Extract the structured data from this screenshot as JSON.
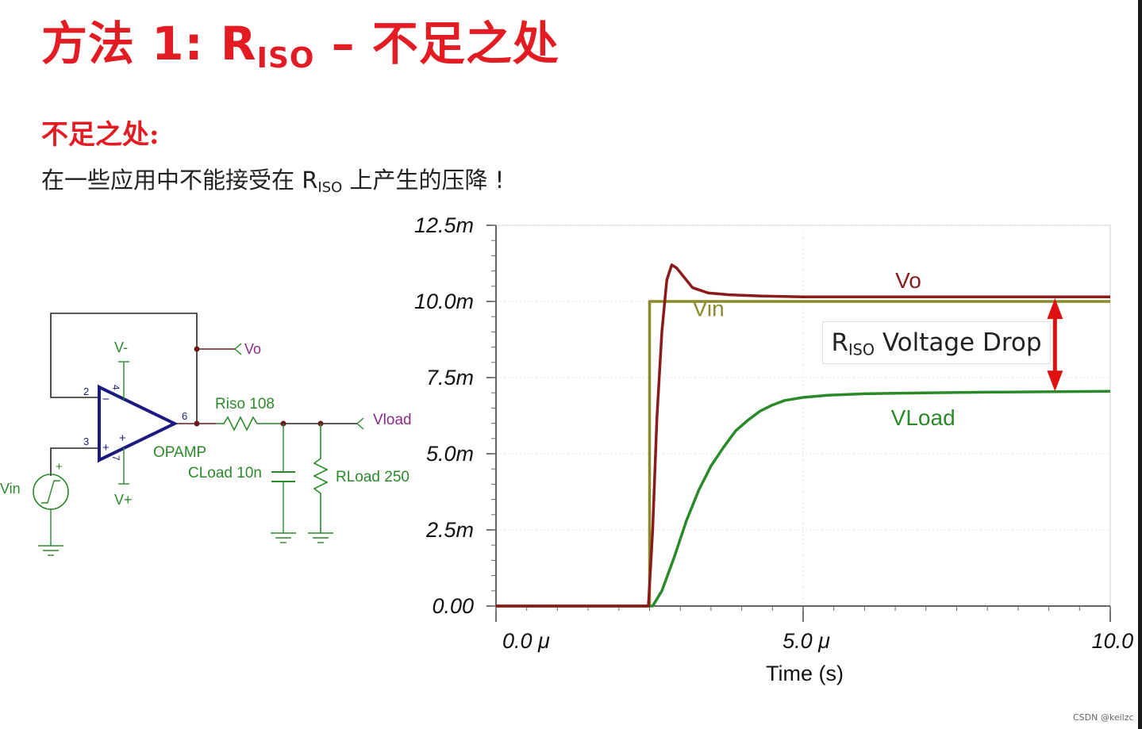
{
  "title": {
    "prefix": "方法 1: R",
    "sub": "ISO",
    "suffix": " – 不足之处"
  },
  "subheading": "不足之处:",
  "body": {
    "prefix": "在一些应用中不能接受在 R",
    "sub": "ISO",
    "suffix": " 上产生的压降 !"
  },
  "schematic": {
    "v_minus": "V-",
    "v_plus": "V+",
    "vo_label": "Vo",
    "vload_label": "Vload",
    "riso_label": "Riso 108",
    "opamp_label": "OPAMP",
    "cload_label": "CLoad 10n",
    "rload_label": "RLoad 250",
    "vin_label": "Vin",
    "pin2": "2",
    "pin3": "3",
    "pin4": "4",
    "pin6": "6",
    "pin7": "7",
    "minus_sign": "−",
    "plus_sign": "+",
    "plus_v": "+",
    "plus_src": "+"
  },
  "chart_data": {
    "type": "line",
    "xlabel": "Time (s)",
    "x_ticks": [
      "0.0 μ",
      "5.0 μ",
      "10.0 μ"
    ],
    "y_ticks": [
      "0.00",
      "2.5m",
      "5.0m",
      "7.5m",
      "10.0m",
      "12.5m"
    ],
    "xlim": [
      0,
      10
    ],
    "ylim": [
      0,
      12.5
    ],
    "grid": true,
    "colors": {
      "vin": "#8b8b2e",
      "vo": "#8b1a1a",
      "vload": "#2a8a2a",
      "arrow": "#e01010"
    },
    "series": [
      {
        "name": "Vin",
        "x": [
          0,
          2.5,
          2.5,
          10
        ],
        "y": [
          0,
          0,
          10,
          10
        ]
      },
      {
        "name": "Vo",
        "x": [
          0,
          2.48,
          2.55,
          2.62,
          2.7,
          2.78,
          2.86,
          2.94,
          3.02,
          3.2,
          3.45,
          3.8,
          4.3,
          5,
          10
        ],
        "y": [
          0,
          0,
          2.5,
          6.2,
          9,
          10.7,
          11.2,
          11.1,
          10.9,
          10.45,
          10.28,
          10.22,
          10.18,
          10.15,
          10.15
        ]
      },
      {
        "name": "VLoad",
        "x": [
          0,
          2.55,
          2.7,
          2.9,
          3.1,
          3.3,
          3.5,
          3.7,
          3.9,
          4.1,
          4.3,
          4.5,
          4.7,
          5,
          5.4,
          6,
          7,
          8,
          10
        ],
        "y": [
          0,
          0,
          0.5,
          1.6,
          2.8,
          3.8,
          4.6,
          5.2,
          5.75,
          6.1,
          6.4,
          6.6,
          6.75,
          6.85,
          6.92,
          6.97,
          7.0,
          7.02,
          7.05
        ]
      }
    ],
    "series_labels": {
      "vin": "Vin",
      "vo": "Vo",
      "vload": "VLoad"
    },
    "annotation": {
      "prefix": "R",
      "sub": "ISO",
      "suffix": " Voltage Drop"
    }
  },
  "credit": "CSDN @keilzc"
}
